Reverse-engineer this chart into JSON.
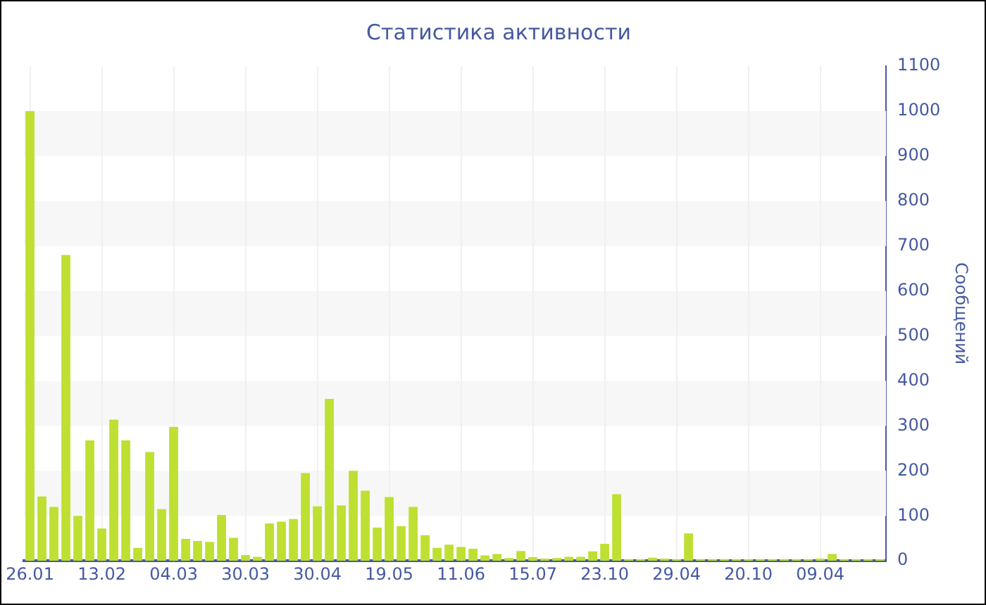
{
  "chart_data": {
    "type": "bar",
    "title": "Статистика активности",
    "ylabel": "Сообщений",
    "categories": [
      "26.01",
      null,
      null,
      null,
      null,
      null,
      "13.02",
      null,
      null,
      null,
      null,
      null,
      "04.03",
      null,
      null,
      null,
      null,
      null,
      "30.03",
      null,
      null,
      null,
      null,
      null,
      "30.04",
      null,
      null,
      null,
      null,
      null,
      "19.05",
      null,
      null,
      null,
      null,
      null,
      "11.06",
      null,
      null,
      null,
      null,
      null,
      "15.07",
      null,
      null,
      null,
      null,
      null,
      "23.10",
      null,
      null,
      null,
      null,
      null,
      "29.04",
      null,
      null,
      null,
      null,
      null,
      "20.10",
      null,
      null,
      null,
      null,
      null,
      "09.04",
      null,
      null,
      null,
      null,
      null
    ],
    "values": [
      1000,
      143,
      120,
      680,
      100,
      268,
      72,
      314,
      268,
      29,
      242,
      115,
      298,
      49,
      44,
      42,
      102,
      51,
      13,
      9,
      83,
      87,
      93,
      195,
      121,
      360,
      123,
      200,
      156,
      74,
      142,
      77,
      120,
      57,
      29,
      36,
      31,
      27,
      12,
      15,
      6,
      22,
      8,
      5,
      6,
      9,
      9,
      21,
      38,
      148,
      4,
      4,
      7,
      5,
      4,
      61,
      4,
      4,
      4,
      4,
      4,
      4,
      4,
      4,
      4,
      4,
      5,
      15,
      4,
      4,
      4,
      4
    ],
    "color": "#bde032",
    "ylim": [
      0,
      1100
    ],
    "yticks": [
      0,
      100,
      200,
      300,
      400,
      500,
      600,
      700,
      800,
      900,
      1000,
      1100
    ],
    "grid": true
  }
}
